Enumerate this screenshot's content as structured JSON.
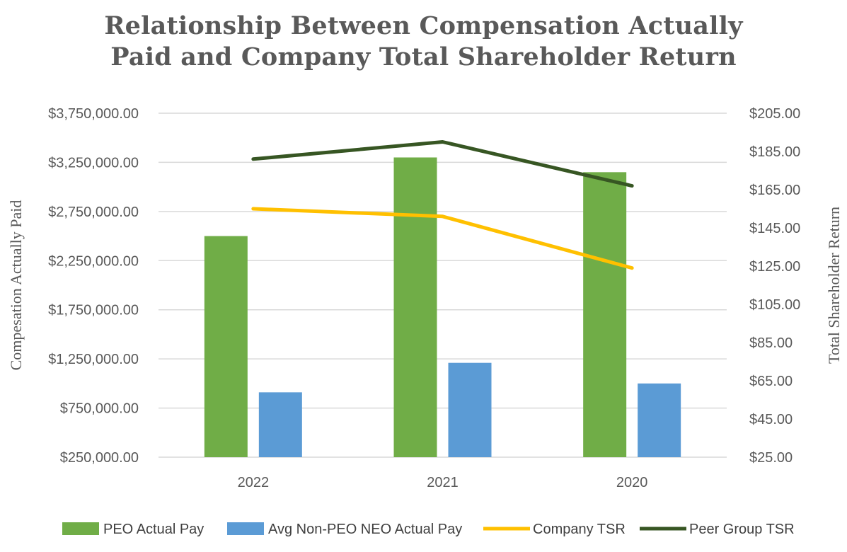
{
  "chart_data": {
    "type": "bar",
    "title_lines": [
      "Relationship Between Compensation Actually",
      "Paid and Company Total Shareholder Return"
    ],
    "categories": [
      "2022",
      "2021",
      "2020"
    ],
    "ylabel_left": "Compesation Actually Paid",
    "ylabel_right": "Total Shareholder Return",
    "y_left": {
      "min": 250000,
      "max": 3750000,
      "step": 500000,
      "ticks": [
        "$250,000.00",
        "$750,000.00",
        "$1,250,000.00",
        "$1,750,000.00",
        "$2,250,000.00",
        "$2,750,000.00",
        "$3,250,000.00",
        "$3,750,000.00"
      ]
    },
    "y_right": {
      "min": 25,
      "max": 205,
      "step": 20,
      "ticks": [
        "$25.00",
        "$45.00",
        "$65.00",
        "$85.00",
        "$105.00",
        "$125.00",
        "$145.00",
        "$165.00",
        "$185.00",
        "$205.00"
      ]
    },
    "grid": true,
    "legend_position": "bottom",
    "series": [
      {
        "name": "PEO Actual Pay",
        "kind": "bar",
        "axis": "left",
        "color": "#70ad47",
        "values": [
          2500000,
          3300000,
          3150000
        ]
      },
      {
        "name": "Avg Non-PEO NEO Actual Pay",
        "kind": "bar",
        "axis": "left",
        "color": "#5b9bd5",
        "values": [
          910000,
          1210000,
          1000000
        ]
      },
      {
        "name": "Company TSR",
        "kind": "line",
        "axis": "right",
        "color": "#ffc000",
        "values": [
          155,
          151,
          124
        ]
      },
      {
        "name": "Peer Group TSR",
        "kind": "line",
        "axis": "right",
        "color": "#375623",
        "values": [
          181,
          190,
          167
        ]
      }
    ]
  }
}
